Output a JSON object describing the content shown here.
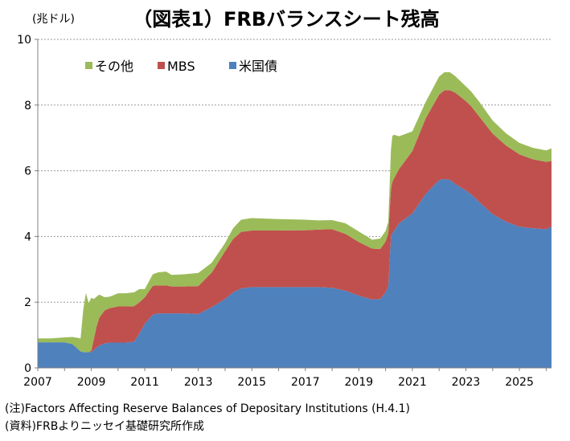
{
  "chart_data": {
    "type": "area",
    "stacked": true,
    "title": "（図表1）FRBバランスシート残高",
    "unit_label": "(兆ドル)",
    "xlabel": "",
    "ylabel": "",
    "ylim": [
      0,
      10
    ],
    "y_ticks": [
      "0",
      "2",
      "4",
      "6",
      "8",
      "10"
    ],
    "xlim": [
      2007.0,
      2026.2
    ],
    "x_ticks": [
      "2007",
      "2009",
      "2011",
      "2013",
      "2015",
      "2017",
      "2019",
      "2021",
      "2023",
      "2025"
    ],
    "grid": "horizontal dashed",
    "legend_position": "top-left",
    "x": [
      2007.0,
      2007.5,
      2008.0,
      2008.3,
      2008.6,
      2008.7,
      2008.8,
      2008.9,
      2009.0,
      2009.1,
      2009.2,
      2009.3,
      2009.5,
      2009.7,
      2010.0,
      2010.3,
      2010.6,
      2010.8,
      2011.0,
      2011.3,
      2011.5,
      2011.8,
      2012.0,
      2012.5,
      2013.0,
      2013.5,
      2014.0,
      2014.3,
      2014.6,
      2015.0,
      2016.0,
      2017.0,
      2017.5,
      2018.0,
      2018.5,
      2019.0,
      2019.5,
      2019.8,
      2020.0,
      2020.1,
      2020.2,
      2020.25,
      2020.3,
      2020.5,
      2021.0,
      2021.5,
      2022.0,
      2022.2,
      2022.4,
      2022.6,
      2023.0,
      2023.2,
      2023.5,
      2024.0,
      2024.5,
      2025.0,
      2025.5,
      2026.0,
      2026.2
    ],
    "series": [
      {
        "name": "米国債",
        "color": "#4F81BD",
        "values": [
          0.78,
          0.78,
          0.78,
          0.72,
          0.5,
          0.48,
          0.48,
          0.48,
          0.48,
          0.55,
          0.62,
          0.68,
          0.75,
          0.77,
          0.77,
          0.77,
          0.8,
          1.05,
          1.35,
          1.62,
          1.66,
          1.66,
          1.66,
          1.66,
          1.64,
          1.85,
          2.1,
          2.3,
          2.42,
          2.46,
          2.46,
          2.46,
          2.46,
          2.44,
          2.35,
          2.2,
          2.08,
          2.1,
          2.3,
          2.5,
          4.0,
          4.1,
          4.15,
          4.4,
          4.7,
          5.3,
          5.72,
          5.75,
          5.73,
          5.6,
          5.4,
          5.28,
          5.05,
          4.68,
          4.45,
          4.3,
          4.25,
          4.22,
          4.3
        ]
      },
      {
        "name": "MBS",
        "color": "#C0504D",
        "values": [
          0,
          0,
          0,
          0,
          0,
          0,
          0,
          0,
          0.05,
          0.35,
          0.65,
          0.85,
          1.0,
          1.05,
          1.1,
          1.1,
          1.08,
          0.95,
          0.8,
          0.88,
          0.85,
          0.85,
          0.82,
          0.82,
          0.85,
          1.05,
          1.45,
          1.62,
          1.72,
          1.72,
          1.72,
          1.73,
          1.75,
          1.78,
          1.73,
          1.63,
          1.55,
          1.52,
          1.55,
          1.6,
          1.45,
          1.55,
          1.6,
          1.65,
          1.9,
          2.3,
          2.6,
          2.7,
          2.72,
          2.78,
          2.72,
          2.68,
          2.6,
          2.45,
          2.32,
          2.2,
          2.1,
          2.05,
          2.0
        ]
      },
      {
        "name": "その他",
        "color": "#9BBB59",
        "values": [
          0.12,
          0.12,
          0.15,
          0.22,
          0.4,
          1.3,
          1.8,
          1.5,
          1.6,
          1.2,
          0.9,
          0.7,
          0.4,
          0.35,
          0.4,
          0.4,
          0.42,
          0.4,
          0.25,
          0.35,
          0.4,
          0.42,
          0.35,
          0.37,
          0.4,
          0.3,
          0.25,
          0.33,
          0.37,
          0.38,
          0.35,
          0.32,
          0.28,
          0.28,
          0.32,
          0.32,
          0.27,
          0.32,
          0.32,
          0.35,
          1.2,
          1.4,
          1.35,
          1.0,
          0.6,
          0.5,
          0.55,
          0.55,
          0.55,
          0.5,
          0.45,
          0.45,
          0.45,
          0.4,
          0.37,
          0.35,
          0.35,
          0.35,
          0.38
        ]
      }
    ]
  },
  "notes": {
    "source_note": "(注)Factors Affecting Reserve Balances of Depositary Institutions (H.4.1)",
    "data_note": "(資料)FRBよりニッセイ基礎研究所作成"
  }
}
